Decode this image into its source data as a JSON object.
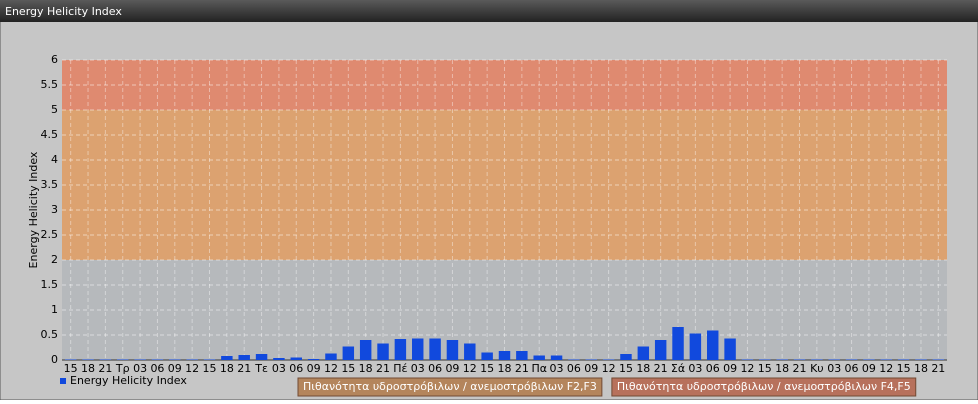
{
  "chart_data": {
    "type": "bar",
    "title": "Energy Helicity Index",
    "ylabel": "Energy Helicity Index",
    "categories": [
      "15",
      "18",
      "21",
      "Τρ",
      "03",
      "06",
      "09",
      "12",
      "15",
      "18",
      "21",
      "Τε",
      "03",
      "06",
      "09",
      "12",
      "15",
      "18",
      "21",
      "Πέ",
      "03",
      "06",
      "09",
      "12",
      "15",
      "18",
      "21",
      "Πα",
      "03",
      "06",
      "09",
      "12",
      "15",
      "18",
      "21",
      "Σά",
      "03",
      "06",
      "09",
      "12",
      "15",
      "18",
      "21",
      "Κυ",
      "03",
      "06",
      "09",
      "12",
      "15",
      "18",
      "21"
    ],
    "series": [
      {
        "name": "Energy Helicity Index",
        "color": "#1149dd",
        "values": [
          0.01,
          0.01,
          0.01,
          0.01,
          0.01,
          0.01,
          0.01,
          0.01,
          0.01,
          0.08,
          0.1,
          0.12,
          0.04,
          0.05,
          0.02,
          0.13,
          0.27,
          0.4,
          0.33,
          0.42,
          0.43,
          0.43,
          0.4,
          0.33,
          0.15,
          0.18,
          0.18,
          0.09,
          0.09,
          0.01,
          0.01,
          0.01,
          0.12,
          0.27,
          0.4,
          0.66,
          0.53,
          0.59,
          0.43,
          0.01,
          0.01,
          0.01,
          0.01,
          0.01,
          0.01,
          0.01,
          0.01,
          0.01,
          0.01,
          0.01,
          0.01
        ]
      }
    ],
    "ylim": [
      0,
      6
    ],
    "yticks": [
      0,
      0.5,
      1,
      1.5,
      2,
      2.5,
      3,
      3.5,
      4,
      4.5,
      5,
      5.5,
      6
    ],
    "grid": true,
    "bands": [
      {
        "from": 0,
        "to": 2,
        "color": "#b6b9bc"
      },
      {
        "from": 2,
        "to": 5,
        "color": "#dca270",
        "label": "Πιθανότητα υδροστρόβιλων / ανεμοστρόβιλων F2,F3"
      },
      {
        "from": 5,
        "to": 6,
        "color": "#df8a70",
        "label": "Πιθανότητα υδροστρόβιλων / ανεμοστρόβιλων F4,F5"
      }
    ]
  }
}
